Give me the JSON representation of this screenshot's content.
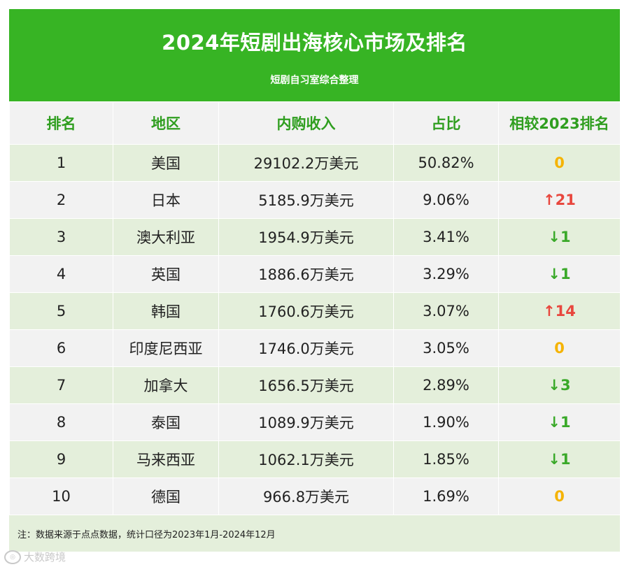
{
  "header": {
    "title": "2024年短剧出海核心市场及排名",
    "subtitle": "短剧自习室综合整理"
  },
  "columns": [
    "排名",
    "地区",
    "内购收入",
    "占比",
    "相较2023排名"
  ],
  "colors": {
    "banner": "#37b424",
    "up": "#e8473e",
    "down": "#3aa929",
    "same": "#f5b300"
  },
  "rows": [
    {
      "rank": "1",
      "region": "美国",
      "revenue": "29102.2万美元",
      "share": "50.82%",
      "change": "0",
      "dir": "same"
    },
    {
      "rank": "2",
      "region": "日本",
      "revenue": "5185.9万美元",
      "share": "9.06%",
      "change": "↑21",
      "dir": "up"
    },
    {
      "rank": "3",
      "region": "澳大利亚",
      "revenue": "1954.9万美元",
      "share": "3.41%",
      "change": "↓1",
      "dir": "down"
    },
    {
      "rank": "4",
      "region": "英国",
      "revenue": "1886.6万美元",
      "share": "3.29%",
      "change": "↓1",
      "dir": "down"
    },
    {
      "rank": "5",
      "region": "韩国",
      "revenue": "1760.6万美元",
      "share": "3.07%",
      "change": "↑14",
      "dir": "up"
    },
    {
      "rank": "6",
      "region": "印度尼西亚",
      "revenue": "1746.0万美元",
      "share": "3.05%",
      "change": "0",
      "dir": "same"
    },
    {
      "rank": "7",
      "region": "加拿大",
      "revenue": "1656.5万美元",
      "share": "2.89%",
      "change": "↓3",
      "dir": "down"
    },
    {
      "rank": "8",
      "region": "泰国",
      "revenue": "1089.9万美元",
      "share": "1.90%",
      "change": "↓1",
      "dir": "down"
    },
    {
      "rank": "9",
      "region": "马来西亚",
      "revenue": "1062.1万美元",
      "share": "1.85%",
      "change": "↓1",
      "dir": "down"
    },
    {
      "rank": "10",
      "region": "德国",
      "revenue": "966.8万美元",
      "share": "1.69%",
      "change": "0",
      "dir": "same"
    }
  ],
  "footer": {
    "note": "注：数据来源于点点数据，统计口径为2023年1月-2024年12月"
  },
  "watermark": {
    "text": "大数跨境",
    "icon": "dashuju-logo-icon"
  }
}
